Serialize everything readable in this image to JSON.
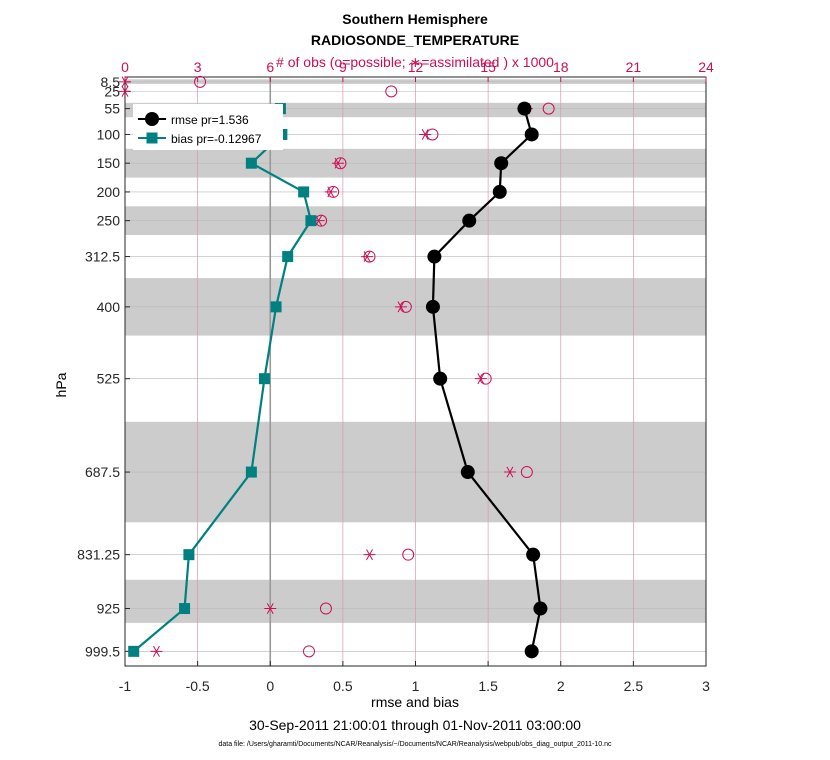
{
  "chart_data": {
    "type": "line",
    "title": "Southern Hemisphere",
    "subtitle": "RADIOSONDE_TEMPERATURE",
    "top_axis_label": "# of obs (o=possible; ∗=assimilated ) x 1000",
    "xlabel": "rmse and bias",
    "ylabel": "hPa",
    "date_range": "30-Sep-2011 21:00:01 through 01-Nov-2011 03:00:00",
    "footer": "data file: /Users/gharamti/Documents/NCAR/Reanalysis/~/Documents/NCAR/Reanalysis/webpub/obs_diag_output_2011-10.nc",
    "xlim": [
      -1,
      3
    ],
    "x_ticks": [
      "-1",
      "-0.5",
      "0",
      "0.5",
      "1",
      "1.5",
      "2",
      "2.5",
      "3"
    ],
    "x_tick_values": [
      -1,
      -0.5,
      0,
      0.5,
      1,
      1.5,
      2,
      2.5,
      3
    ],
    "top_xlim": [
      0,
      24
    ],
    "top_ticks": [
      "0",
      "3",
      "6",
      "9",
      "12",
      "15",
      "18",
      "21",
      "24"
    ],
    "top_tick_values": [
      0,
      3,
      6,
      9,
      12,
      15,
      18,
      21,
      24
    ],
    "levels": [
      8.5,
      25,
      55,
      100,
      150,
      200,
      250,
      312.5,
      400,
      525,
      687.5,
      831.25,
      925,
      999.5
    ],
    "level_labels": [
      "8.5",
      "25",
      "55",
      "100",
      "150",
      "200",
      "250",
      "312.5",
      "400",
      "525",
      "687.5",
      "831.25",
      "925",
      "999.5"
    ],
    "legend": {
      "rmse_label": "rmse pr=1.536",
      "bias_label": "bias pr=-0.12967",
      "position": "top-left"
    },
    "series": [
      {
        "name": "rmse",
        "color": "#000000",
        "marker": "circle",
        "levels": [
          55,
          100,
          150,
          200,
          250,
          312.5,
          400,
          525,
          687.5,
          831.25,
          925,
          999.5
        ],
        "values": [
          1.75,
          1.8,
          1.59,
          1.58,
          1.37,
          1.13,
          1.12,
          1.17,
          1.36,
          1.81,
          1.86,
          1.8
        ]
      },
      {
        "name": "bias",
        "color": "#008080",
        "marker": "square",
        "levels": [
          55,
          100,
          150,
          200,
          250,
          312.5,
          400,
          525,
          687.5,
          831.25,
          925,
          999.5
        ],
        "values": [
          0.07,
          0.08,
          -0.13,
          0.23,
          0.28,
          0.12,
          0.04,
          -0.04,
          -0.13,
          -0.56,
          -0.59,
          -0.94
        ]
      }
    ],
    "obs_counts": {
      "color": "#cc0f55",
      "possible_thousands": [
        {
          "level": 8.5,
          "value": 3.1
        },
        {
          "level": 25,
          "value": 11.0
        },
        {
          "level": 55,
          "value": 17.5
        },
        {
          "level": 100,
          "value": 12.7
        },
        {
          "level": 150,
          "value": 8.9
        },
        {
          "level": 200,
          "value": 8.6
        },
        {
          "level": 250,
          "value": 8.1
        },
        {
          "level": 312.5,
          "value": 10.1
        },
        {
          "level": 400,
          "value": 11.6
        },
        {
          "level": 525,
          "value": 14.9
        },
        {
          "level": 687.5,
          "value": 16.6
        },
        {
          "level": 831.25,
          "value": 11.7
        },
        {
          "level": 925,
          "value": 8.3
        },
        {
          "level": 999.5,
          "value": 7.6
        }
      ],
      "assimilated_thousands": [
        {
          "level": 8.5,
          "value": 0.0
        },
        {
          "level": 25,
          "value": 0.0
        },
        {
          "level": 55,
          "value": 16.6
        },
        {
          "level": 100,
          "value": 12.4
        },
        {
          "level": 150,
          "value": 8.8
        },
        {
          "level": 200,
          "value": 8.5
        },
        {
          "level": 250,
          "value": 8.0
        },
        {
          "level": 312.5,
          "value": 10.0
        },
        {
          "level": 400,
          "value": 11.4
        },
        {
          "level": 525,
          "value": 14.7
        },
        {
          "level": 687.5,
          "value": 15.9
        },
        {
          "level": 831.25,
          "value": 10.1
        },
        {
          "level": 925,
          "value": 6.0
        },
        {
          "level": 999.5,
          "value": 1.3
        }
      ]
    },
    "shaded_layers": [
      {
        "from": 4,
        "to": 12
      },
      {
        "from": 45,
        "to": 70
      },
      {
        "from": 125,
        "to": 175
      },
      {
        "from": 225,
        "to": 275
      },
      {
        "from": 350,
        "to": 450
      },
      {
        "from": 600,
        "to": 775
      },
      {
        "from": 875,
        "to": 950
      }
    ]
  }
}
